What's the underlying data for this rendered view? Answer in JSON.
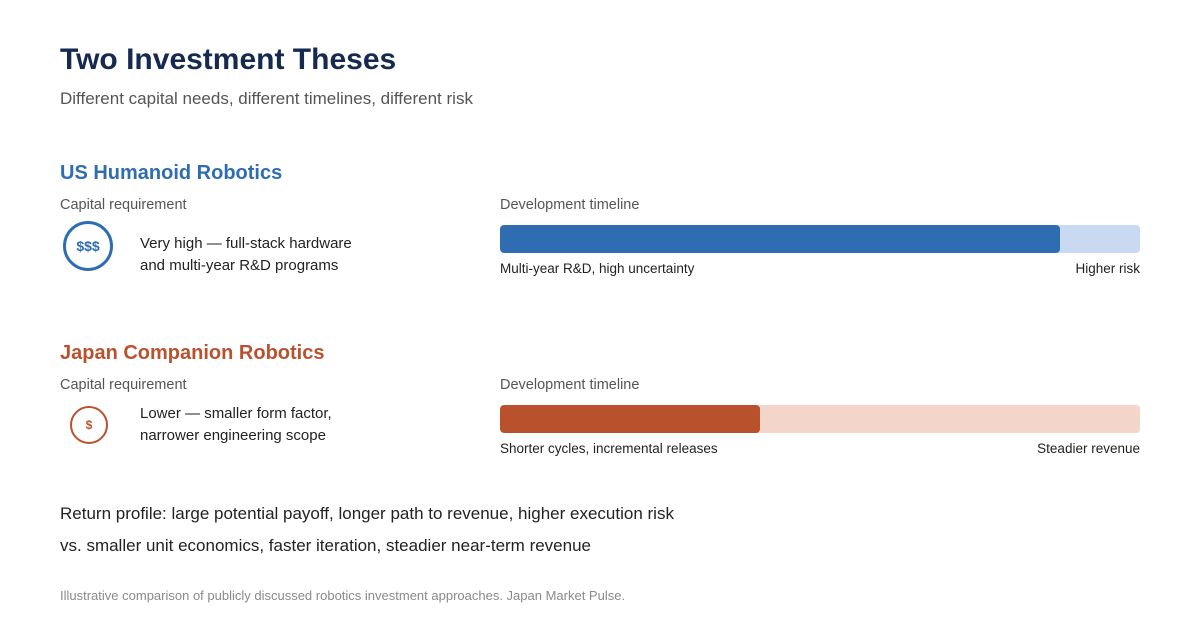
{
  "header": {
    "title": "Two Investment Theses",
    "subtitle": "Different capital needs, different timelines, different risk"
  },
  "theses": [
    {
      "name": "US Humanoid Robotics",
      "color": "#2f6db3",
      "track_color": "#c8d9f1",
      "capital_label": "Capital requirement",
      "capital_symbol": "$$$",
      "icon": "dollar-coin-large-icon",
      "capital_desc_line1": "Very high — full-stack hardware",
      "capital_desc_line2": "and multi-year R&D programs",
      "timeline_label": "Development timeline",
      "timeline_fill_fraction": 0.875,
      "timeline_left_caption": "Multi-year R&D, high uncertainty",
      "timeline_right_caption": "Higher risk"
    },
    {
      "name": "Japan Companion Robotics",
      "color": "#b9522c",
      "track_color": "#f3d5c9",
      "capital_label": "Capital requirement",
      "capital_symbol": "$",
      "icon": "dollar-coin-small-icon",
      "capital_desc_line1": "Lower — smaller form factor,",
      "capital_desc_line2": "narrower engineering scope",
      "timeline_label": "Development timeline",
      "timeline_fill_fraction": 0.406,
      "timeline_left_caption": "Shorter cycles, incremental releases",
      "timeline_right_caption": "Steadier revenue"
    }
  ],
  "return_profile": {
    "line1": "Return profile: large potential payoff, longer path to revenue, higher execution risk",
    "line2": "vs. smaller unit economics, faster iteration, steadier near-term revenue"
  },
  "footnote": "Illustrative comparison of publicly discussed robotics investment approaches. Japan Market Pulse."
}
